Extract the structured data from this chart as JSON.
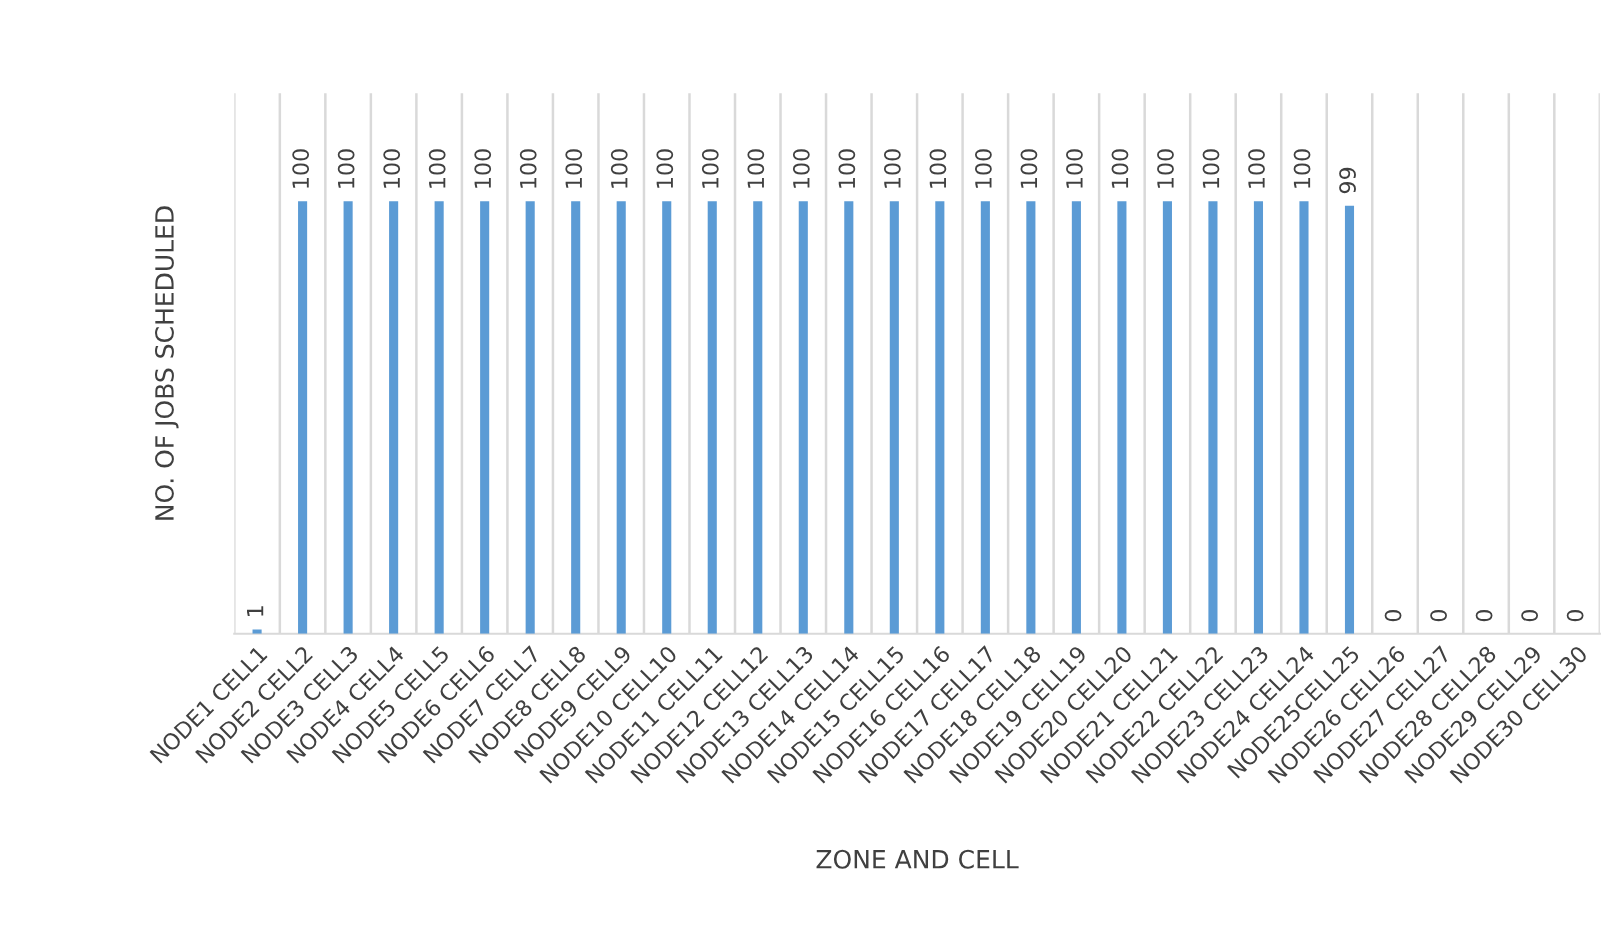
{
  "chart_data": {
    "type": "bar",
    "xlabel": "ZONE AND CELL",
    "ylabel": "NO. OF JOBS SCHEDULED",
    "categories": [
      "NODE1 CELL1",
      "NODE2 CELL2",
      "NODE3 CELL3",
      "NODE4 CELL4",
      "NODE5 CELL5",
      "NODE6 CELL6",
      "NODE7 CELL7",
      "NODE8 CELL8",
      "NODE9 CELL9",
      "NODE10 CELL10",
      "NODE11 CELL11",
      "NODE12 CELL12",
      "NODE13 CELL13",
      "NODE14 CELL14",
      "NODE15 CELL15",
      "NODE16 CELL16",
      "NODE17 CELL17",
      "NODE18 CELL18",
      "NODE19 CELL19",
      "NODE20 CELL20",
      "NODE21 CELL21",
      "NODE22 CELL22",
      "NODE23 CELL23",
      "NODE24 CELL24",
      "NODE25CELL25",
      "NODE26 CELL26",
      "NODE27 CELL27",
      "NODE28 CELL28",
      "NODE29 CELL29",
      "NODE30 CELL30"
    ],
    "values": [
      1,
      100,
      100,
      100,
      100,
      100,
      100,
      100,
      100,
      100,
      100,
      100,
      100,
      100,
      100,
      100,
      100,
      100,
      100,
      100,
      100,
      100,
      100,
      100,
      99,
      0,
      0,
      0,
      0,
      0
    ],
    "color": "#5b9bd5",
    "data_labels": true,
    "grid": "x",
    "tick_labels": "x"
  }
}
